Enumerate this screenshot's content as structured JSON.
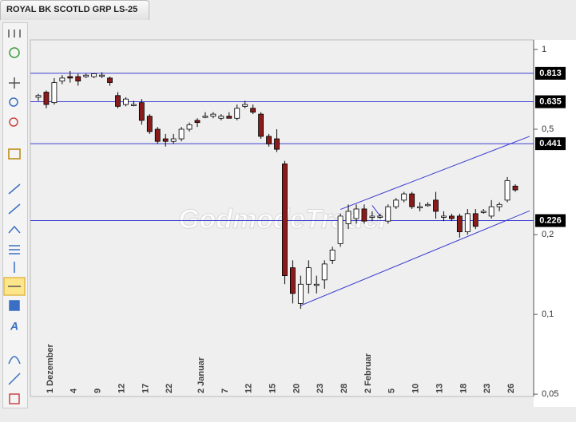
{
  "chart_data": {
    "type": "candlestick",
    "title": "ROYAL BK SCOTLD GRP LS-25",
    "watermark": "GodmodeTrader",
    "log_scale": true,
    "ylim": [
      0.049,
      1.087
    ],
    "yticks": [
      {
        "value": 1,
        "label": "1"
      },
      {
        "value": 0.5,
        "label": "0,5"
      },
      {
        "value": 0.2,
        "label": "0,2"
      },
      {
        "value": 0.1,
        "label": "0,1"
      },
      {
        "value": 0.05,
        "label": "0,05"
      }
    ],
    "categories": [
      null,
      "1 Dezember",
      null,
      null,
      "4",
      null,
      null,
      "9",
      null,
      null,
      "12",
      null,
      null,
      "17",
      null,
      null,
      "22",
      null,
      null,
      null,
      "2 Januar",
      null,
      null,
      "7",
      null,
      null,
      "12",
      null,
      null,
      "15",
      null,
      null,
      "20",
      null,
      null,
      "23",
      null,
      null,
      "28",
      null,
      null,
      "2 Februar",
      null,
      null,
      "5",
      null,
      null,
      "10",
      null,
      null,
      "13",
      null,
      null,
      "18",
      null,
      null,
      "23",
      null,
      null,
      "26",
      null
    ],
    "open": [
      0.66,
      0.69,
      0.63,
      0.76,
      0.79,
      0.79,
      0.79,
      0.79,
      0.8,
      0.78,
      0.67,
      0.62,
      0.62,
      0.63,
      0.56,
      0.5,
      0.46,
      0.45,
      0.46,
      0.5,
      0.54,
      0.56,
      0.56,
      0.55,
      0.56,
      0.55,
      0.61,
      0.6,
      0.57,
      0.47,
      0.46,
      0.37,
      0.15,
      0.11,
      0.13,
      0.13,
      0.135,
      0.16,
      0.185,
      0.22,
      0.23,
      0.25,
      0.235,
      0.235,
      0.225,
      0.255,
      0.27,
      0.285,
      0.255,
      0.26,
      0.27,
      0.235,
      0.235,
      0.235,
      0.205,
      0.24,
      0.245,
      0.235,
      0.255,
      0.27,
      0.305
    ],
    "high": [
      0.68,
      0.7,
      0.78,
      0.8,
      0.83,
      0.81,
      0.81,
      0.81,
      0.82,
      0.79,
      0.69,
      0.66,
      0.64,
      0.65,
      0.57,
      0.51,
      0.48,
      0.48,
      0.51,
      0.53,
      0.55,
      0.58,
      0.58,
      0.57,
      0.58,
      0.62,
      0.64,
      0.62,
      0.58,
      0.48,
      0.5,
      0.38,
      0.16,
      0.14,
      0.16,
      0.14,
      0.16,
      0.18,
      0.24,
      0.26,
      0.26,
      0.26,
      0.245,
      0.24,
      0.26,
      0.275,
      0.29,
      0.29,
      0.265,
      0.265,
      0.29,
      0.245,
      0.24,
      0.24,
      0.25,
      0.25,
      0.25,
      0.27,
      0.265,
      0.33,
      0.31
    ],
    "low": [
      0.64,
      0.6,
      0.62,
      0.74,
      0.75,
      0.73,
      0.78,
      0.78,
      0.78,
      0.73,
      0.6,
      0.61,
      0.61,
      0.52,
      0.48,
      0.44,
      0.43,
      0.44,
      0.45,
      0.49,
      0.51,
      0.55,
      0.55,
      0.54,
      0.55,
      0.54,
      0.6,
      0.57,
      0.46,
      0.43,
      0.41,
      0.13,
      0.11,
      0.105,
      0.12,
      0.12,
      0.125,
      0.155,
      0.18,
      0.21,
      0.22,
      0.22,
      0.225,
      0.23,
      0.22,
      0.25,
      0.265,
      0.25,
      0.245,
      0.255,
      0.23,
      0.225,
      0.225,
      0.195,
      0.2,
      0.21,
      0.24,
      0.23,
      0.245,
      0.265,
      0.29
    ],
    "close": [
      0.67,
      0.62,
      0.75,
      0.78,
      0.78,
      0.76,
      0.8,
      0.81,
      0.8,
      0.75,
      0.61,
      0.65,
      0.62,
      0.54,
      0.49,
      0.45,
      0.45,
      0.46,
      0.5,
      0.52,
      0.53,
      0.56,
      0.57,
      0.56,
      0.55,
      0.6,
      0.62,
      0.58,
      0.47,
      0.44,
      0.42,
      0.14,
      0.12,
      0.13,
      0.15,
      0.13,
      0.155,
      0.175,
      0.235,
      0.245,
      0.25,
      0.225,
      0.235,
      0.235,
      0.255,
      0.27,
      0.285,
      0.255,
      0.255,
      0.26,
      0.245,
      0.235,
      0.23,
      0.205,
      0.24,
      0.215,
      0.245,
      0.255,
      0.26,
      0.32,
      0.295
    ],
    "up_color": "#ffffff",
    "down_color": "#8b1a1a",
    "hlines": [
      0.813,
      0.635,
      0.441,
      0.226
    ],
    "line_color": "#3c3cd2",
    "trendlines": [
      {
        "x": [
          33,
          61.8
        ],
        "values": [
          0.108,
          0.246
        ]
      },
      {
        "x": [
          38,
          61.8
        ],
        "values": [
          0.249,
          0.47
        ]
      },
      {
        "x": [
          42,
          43
        ],
        "values": [
          0.258,
          0.235
        ]
      }
    ]
  }
}
